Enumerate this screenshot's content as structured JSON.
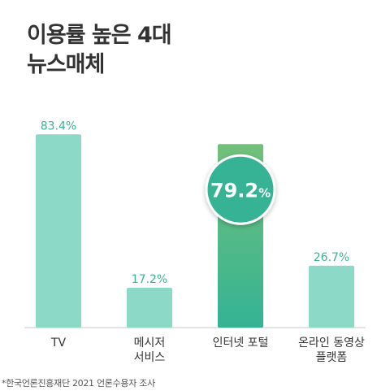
{
  "title_lines": [
    "이용률 높은 4대",
    "뉴스매체"
  ],
  "chart_data": {
    "type": "bar",
    "title": "이용률 높은 4대 뉴스매체",
    "categories": [
      [
        "TV"
      ],
      [
        "메시저",
        "서비스"
      ],
      [
        "인터넷 포털"
      ],
      [
        "온라인 동영상",
        "플랫폼"
      ]
    ],
    "values": [
      83.4,
      17.2,
      79.2,
      26.7
    ],
    "value_labels": [
      "83.4%",
      "17.2%",
      "79.2%",
      "26.7%"
    ],
    "highlight_index": 2,
    "ylim": [
      0,
      100
    ],
    "grid": false,
    "colors": {
      "bar": "#8dd9c7",
      "label": "#3ab394",
      "highlight_top": "#72c07a",
      "highlight_bottom": "#34b394",
      "bubble": "#35b394",
      "baseline": "#c8c8c8"
    }
  },
  "footnote": "*한국언론진흥재단 2021 언론수용자 조사"
}
